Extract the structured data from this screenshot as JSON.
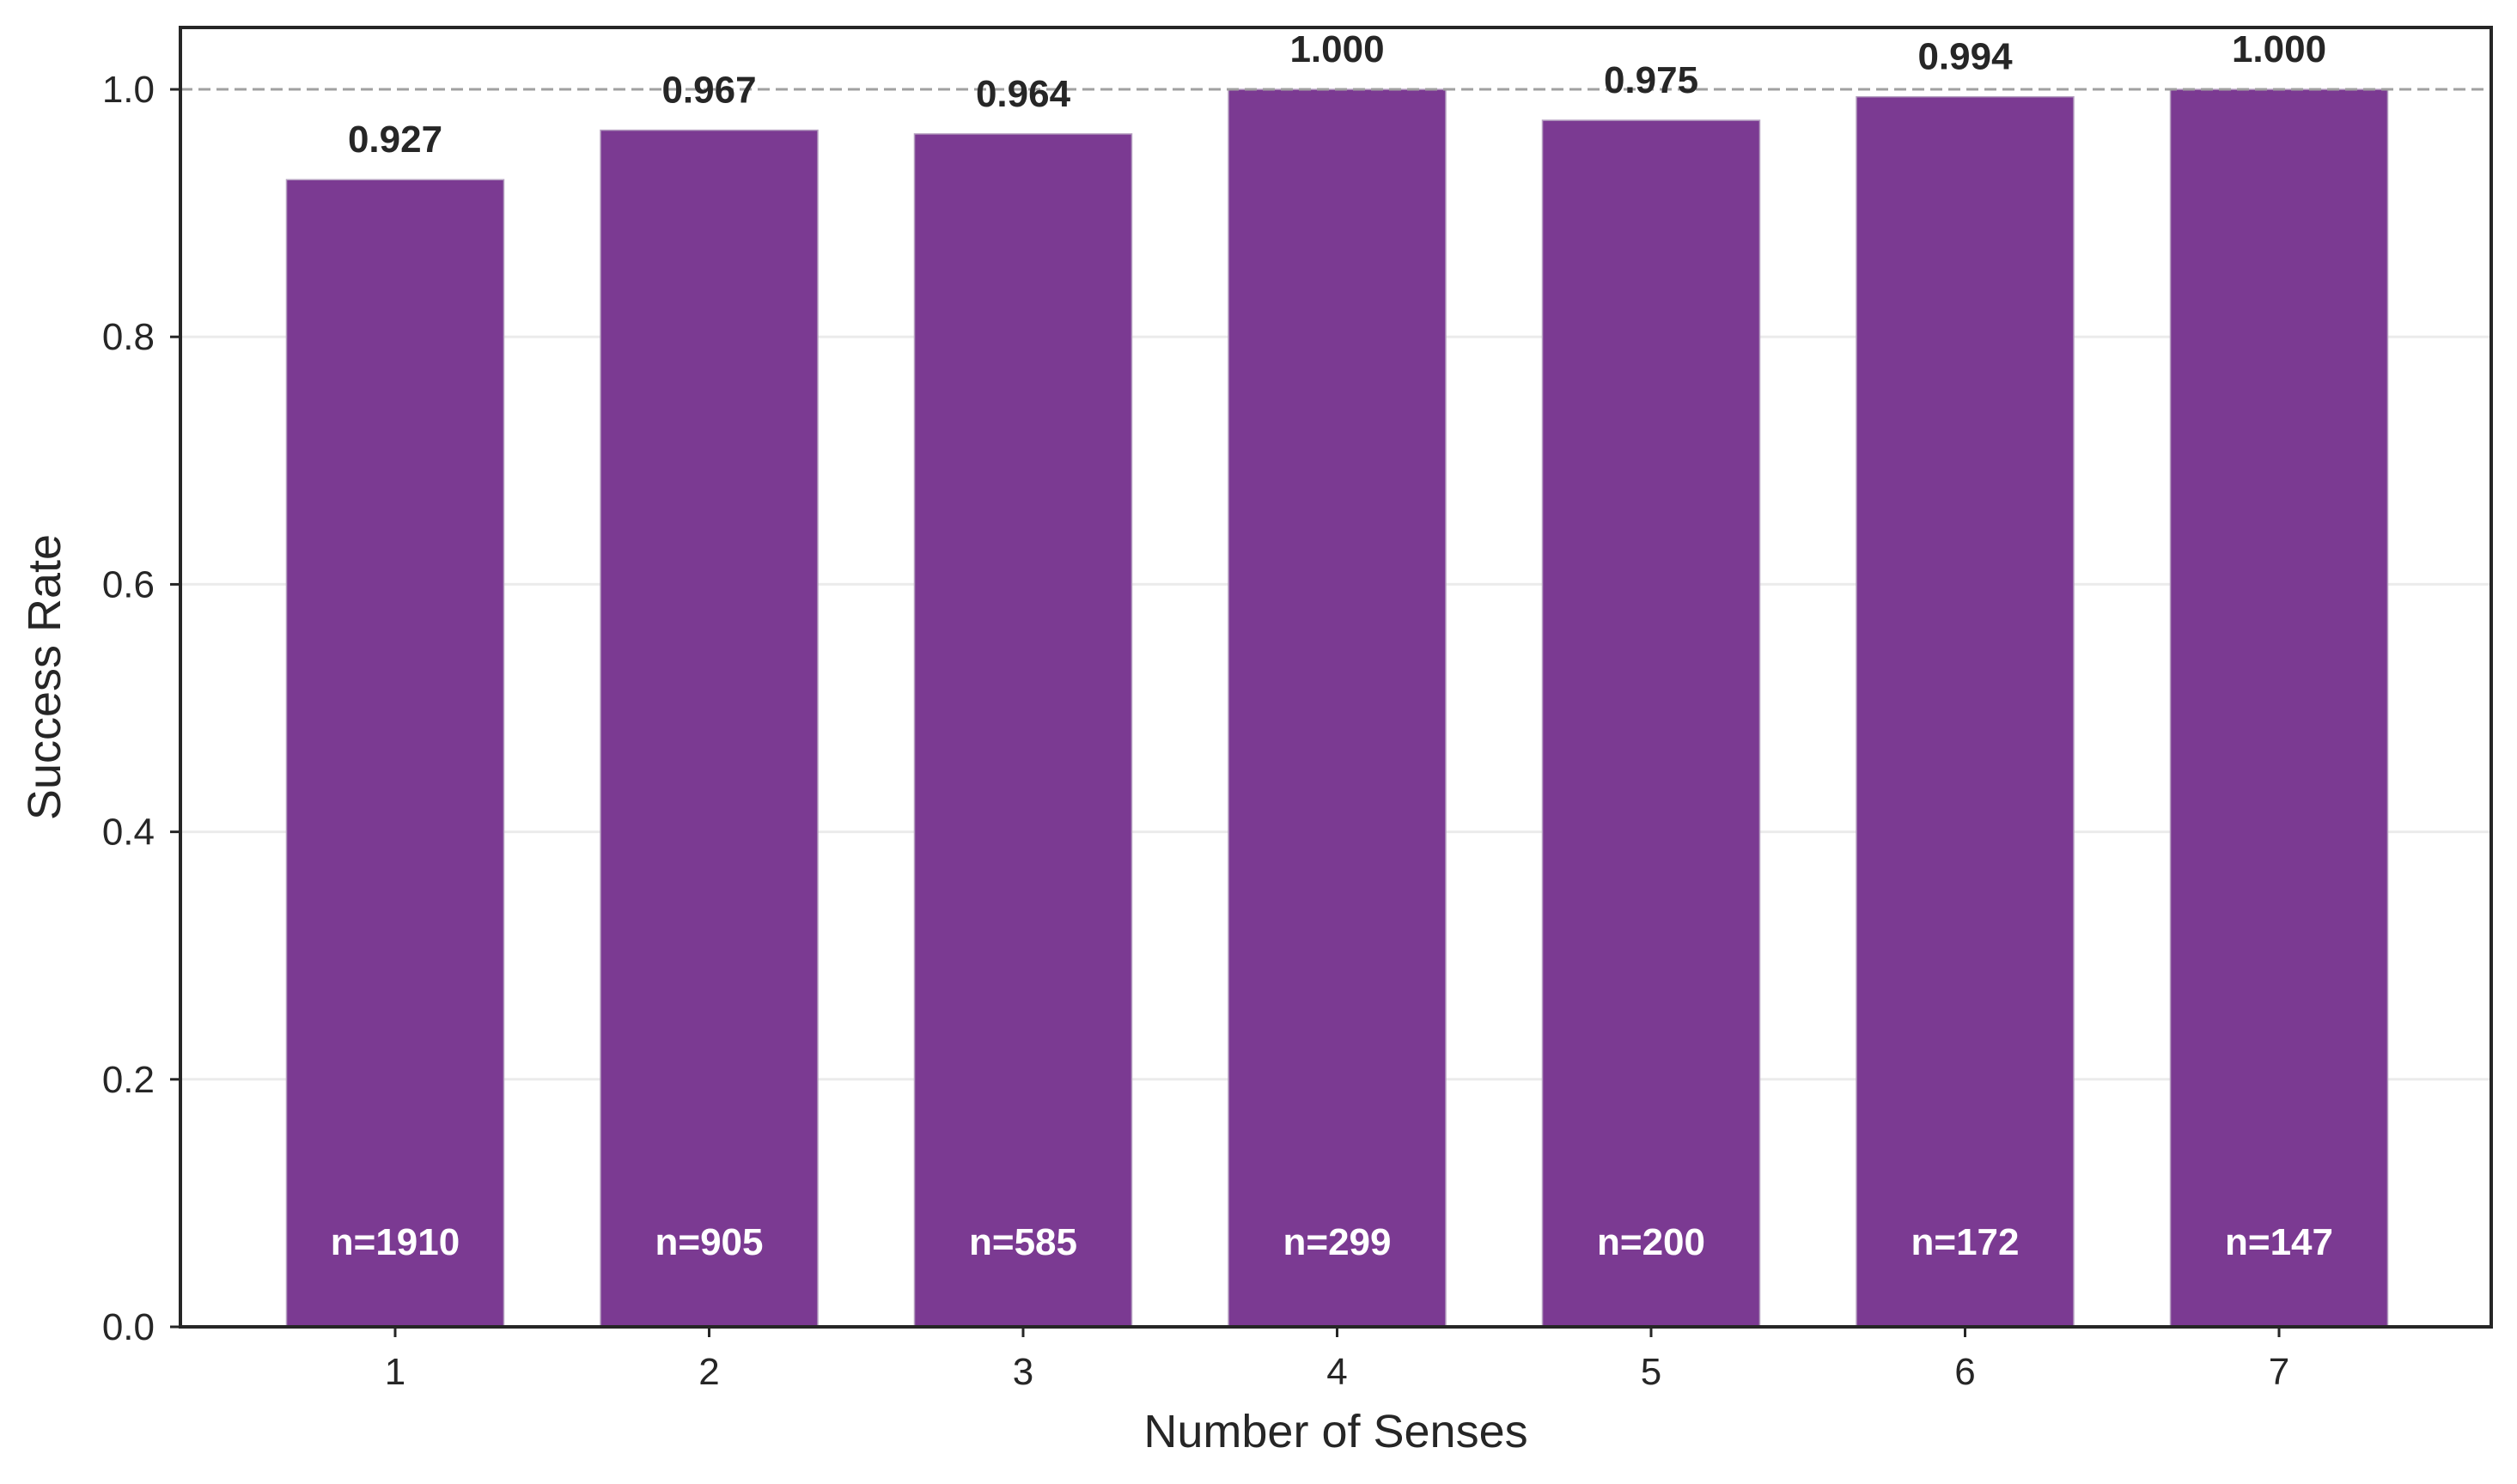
{
  "chart_data": {
    "type": "bar",
    "title": "",
    "xlabel": "Number of Senses",
    "ylabel": "Success Rate",
    "categories": [
      "1",
      "2",
      "3",
      "4",
      "5",
      "6",
      "7"
    ],
    "values": [
      0.927,
      0.967,
      0.964,
      1.0,
      0.975,
      0.994,
      1.0
    ],
    "value_labels": [
      "0.927",
      "0.967",
      "0.964",
      "1.000",
      "0.975",
      "0.994",
      "1.000"
    ],
    "count_labels": [
      "n=1910",
      "n=905",
      "n=585",
      "n=299",
      "n=200",
      "n=172",
      "n=147"
    ],
    "ylim": [
      0,
      1.05
    ],
    "yticks": [
      0.0,
      0.2,
      0.4,
      0.6,
      0.8,
      1.0
    ],
    "ytick_labels": [
      "0.0",
      "0.2",
      "0.4",
      "0.6",
      "0.8",
      "1.0"
    ],
    "reference_line": 1.0,
    "grid": "y",
    "legend": "none",
    "colors": {
      "bar": "#7b3a92",
      "axis": "#262626",
      "grid": "#ebebeb",
      "reference_line": "#a0a0a0",
      "count_text": "#ffffff",
      "value_text": "#262626"
    }
  }
}
